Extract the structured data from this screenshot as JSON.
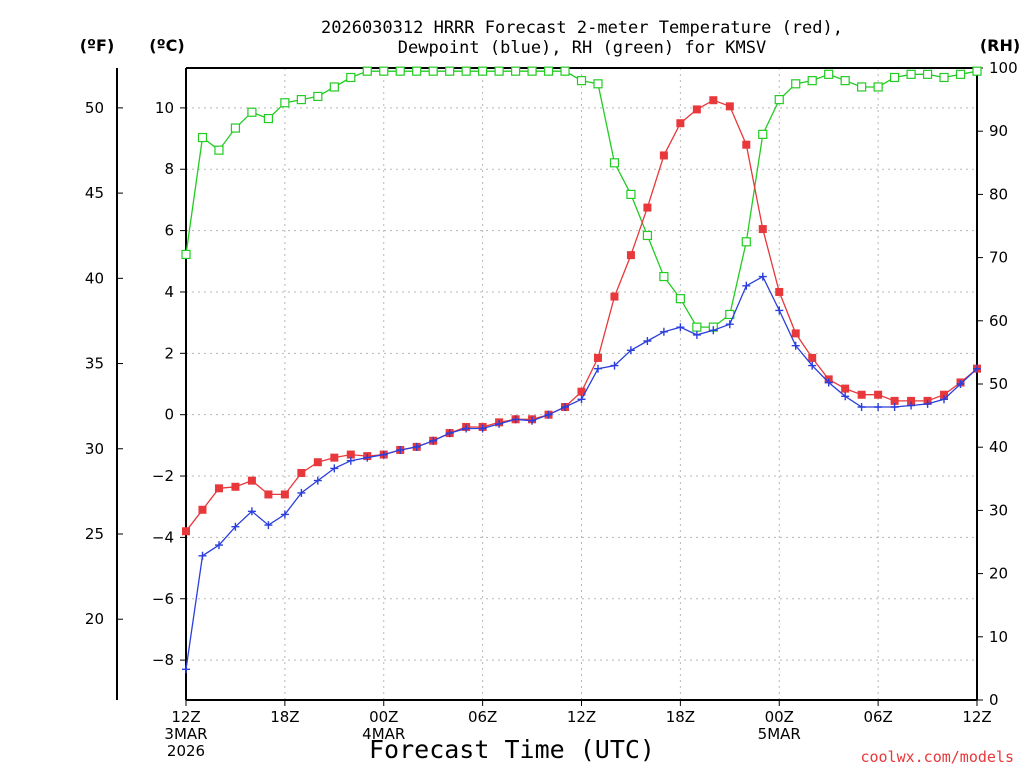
{
  "chart_data": {
    "type": "line",
    "title_line1": "2026030312 HRRR Forecast 2-meter Temperature (red),",
    "title_line2": "Dewpoint (blue), RH (green) for KMSV",
    "unit_f": "(ºF)",
    "unit_c": "(ºC)",
    "unit_rh": "(RH)",
    "xlabel": "Forecast Time (UTC)",
    "credit": "coolwx.com/models",
    "x_range_hours": [
      0,
      48
    ],
    "y_celsius_range": [
      -9.3,
      11.3
    ],
    "y_rh_range": [
      0,
      100
    ],
    "x_ticks": [
      {
        "hour": 0,
        "lines": [
          "12Z",
          "3MAR",
          "2026"
        ]
      },
      {
        "hour": 6,
        "lines": [
          "18Z"
        ]
      },
      {
        "hour": 12,
        "lines": [
          "00Z",
          "4MAR"
        ]
      },
      {
        "hour": 18,
        "lines": [
          "06Z"
        ]
      },
      {
        "hour": 24,
        "lines": [
          "12Z"
        ]
      },
      {
        "hour": 30,
        "lines": [
          "18Z"
        ]
      },
      {
        "hour": 36,
        "lines": [
          "00Z",
          "5MAR"
        ]
      },
      {
        "hour": 42,
        "lines": [
          "06Z"
        ]
      },
      {
        "hour": 48,
        "lines": [
          "12Z"
        ]
      }
    ],
    "y_ticks_c": [
      "-8",
      "-6",
      "-4",
      "-2",
      "0",
      "2",
      "4",
      "6",
      "8",
      "10"
    ],
    "y_ticks_f": [
      "20",
      "25",
      "30",
      "35",
      "40",
      "45",
      "50"
    ],
    "y_ticks_rh": [
      "0",
      "10",
      "20",
      "30",
      "40",
      "50",
      "60",
      "70",
      "80",
      "90",
      "100"
    ],
    "series": [
      {
        "name": "Temperature",
        "unit": "C",
        "color": "#e8383b",
        "marker": "filled-square",
        "values": [
          -3.8,
          -3.1,
          -2.4,
          -2.35,
          -2.15,
          -2.6,
          -2.6,
          -1.9,
          -1.55,
          -1.4,
          -1.3,
          -1.35,
          -1.3,
          -1.15,
          -1.05,
          -0.85,
          -0.6,
          -0.4,
          -0.4,
          -0.25,
          -0.15,
          -0.15,
          0.0,
          0.25,
          0.75,
          1.85,
          3.85,
          5.2,
          6.75,
          8.45,
          9.5,
          9.95,
          10.25,
          10.05,
          8.8,
          6.05,
          4.0,
          2.65,
          1.85,
          1.15,
          0.85,
          0.65,
          0.65,
          0.45,
          0.45,
          0.45,
          0.65,
          1.05,
          1.5
        ]
      },
      {
        "name": "Dewpoint",
        "unit": "C",
        "color": "#2a3fdc",
        "marker": "plus",
        "values": [
          -8.3,
          -4.6,
          -4.25,
          -3.65,
          -3.15,
          -3.6,
          -3.25,
          -2.55,
          -2.15,
          -1.75,
          -1.5,
          -1.4,
          -1.3,
          -1.15,
          -1.05,
          -0.85,
          -0.6,
          -0.45,
          -0.45,
          -0.3,
          -0.15,
          -0.2,
          0.0,
          0.25,
          0.5,
          1.5,
          1.6,
          2.1,
          2.4,
          2.7,
          2.85,
          2.6,
          2.75,
          2.95,
          4.2,
          4.5,
          3.4,
          2.25,
          1.6,
          1.05,
          0.6,
          0.25,
          0.25,
          0.25,
          0.3,
          0.35,
          0.5,
          1.0,
          1.5
        ]
      },
      {
        "name": "RH",
        "unit": "%",
        "color": "#22cc22",
        "marker": "open-square",
        "values": [
          70.5,
          89,
          87,
          90.5,
          93,
          92,
          94.5,
          95,
          95.5,
          97,
          98.5,
          99.5,
          99.5,
          99.5,
          99.5,
          99.5,
          99.5,
          99.5,
          99.5,
          99.5,
          99.5,
          99.5,
          99.5,
          99.5,
          98,
          97.5,
          85,
          80,
          73.5,
          67,
          63.5,
          59,
          59,
          61,
          72.5,
          89.5,
          95,
          97.5,
          98,
          99,
          98,
          97,
          97,
          98.5,
          99,
          99,
          98.5,
          99,
          99.5
        ]
      }
    ]
  }
}
